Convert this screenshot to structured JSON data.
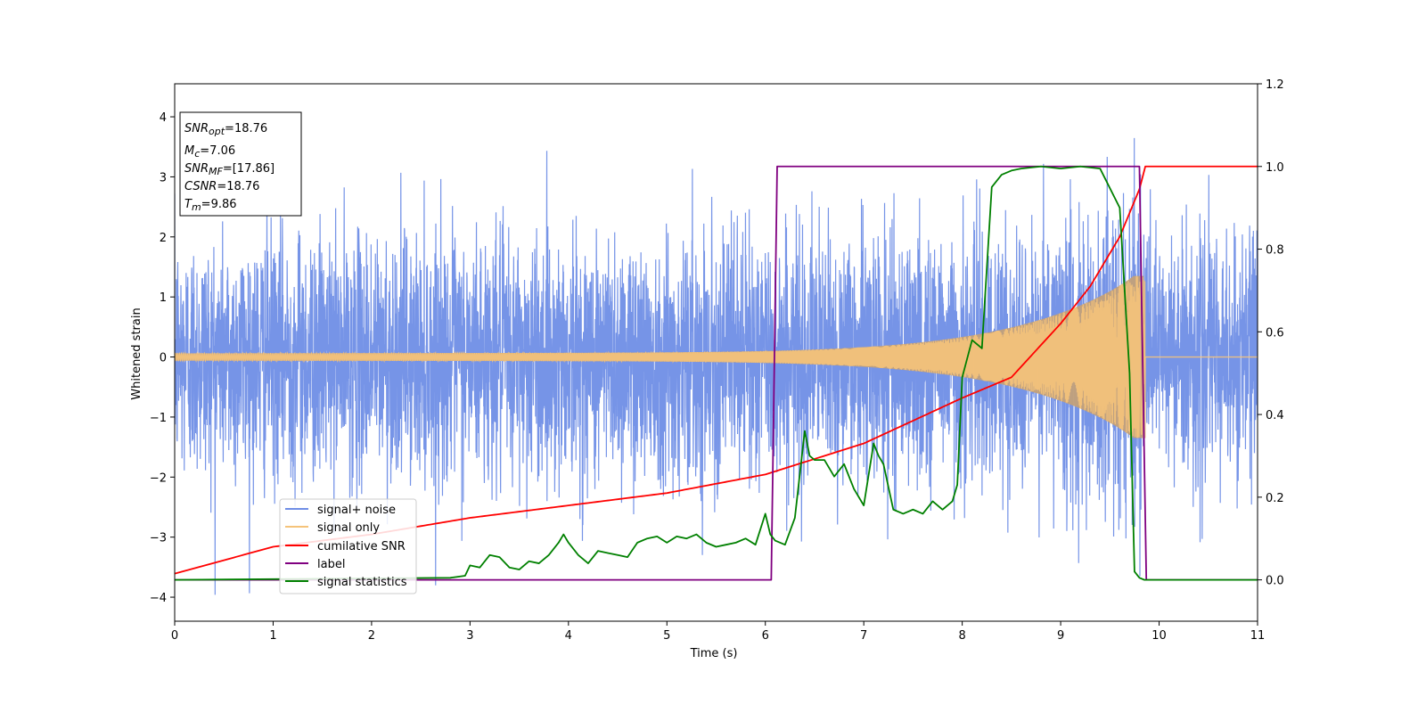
{
  "chart_data": {
    "type": "line",
    "xlabel": "Time (s)",
    "ylabel": "Whitened strain",
    "xlim": [
      0,
      11
    ],
    "ylim_left": [
      -4.4,
      4.55
    ],
    "ylim_right": [
      -0.1,
      1.2
    ],
    "x_ticks": [
      0,
      1,
      2,
      3,
      4,
      5,
      6,
      7,
      8,
      9,
      10,
      11
    ],
    "y_ticks_left": [
      -4,
      -3,
      -2,
      -1,
      0,
      1,
      2,
      3,
      4
    ],
    "y_ticks_right": [
      0.0,
      0.2,
      0.4,
      0.6,
      0.8,
      1.0,
      1.2
    ],
    "legend_position": "lower-left",
    "annotation": {
      "snr_opt": {
        "main": "SNR",
        "sub": "opt",
        "value": "=18.76"
      },
      "mc": {
        "main": "M",
        "sub": "c",
        "value": "=7.06"
      },
      "snr_mf": {
        "main": "SNR",
        "sub": "MF",
        "value": "=[17.86]"
      },
      "csnr": {
        "main": "CSNR",
        "sub": "",
        "value": "=18.76"
      },
      "tm": {
        "main": "T",
        "sub": "m",
        "value": "=9.86"
      }
    },
    "series": [
      {
        "name": "signal+ noise",
        "axis": "left",
        "color": "#6f8ee6",
        "noise_std": 1.0,
        "approx_range": [
          -3.9,
          4.2
        ]
      },
      {
        "name": "signal only",
        "axis": "left",
        "color": "#f5c37a",
        "chirp_start_amplitude": 0.06,
        "chirp_end_amplitude": 1.35,
        "merger_time": 9.86
      },
      {
        "name": "cumilative SNR",
        "axis": "right",
        "color": "#ff0000",
        "x": [
          0,
          1,
          2,
          3,
          4,
          5,
          6,
          7,
          8,
          8.5,
          9,
          9.3,
          9.6,
          9.8,
          9.86,
          11
        ],
        "values": [
          0.015,
          0.08,
          0.11,
          0.15,
          0.18,
          0.21,
          0.255,
          0.33,
          0.44,
          0.49,
          0.62,
          0.71,
          0.83,
          0.945,
          1.0,
          1.0
        ]
      },
      {
        "name": "label",
        "axis": "right",
        "color": "#800080",
        "x": [
          0,
          6.06,
          6.12,
          9.8,
          9.87,
          11
        ],
        "values": [
          0.0,
          0.0,
          1.0,
          1.0,
          0.0,
          0.0
        ]
      },
      {
        "name": "signal statistics",
        "axis": "right",
        "color": "#008000",
        "x": [
          0,
          2.8,
          2.95,
          3.0,
          3.1,
          3.2,
          3.3,
          3.4,
          3.5,
          3.6,
          3.7,
          3.8,
          3.9,
          3.95,
          4.0,
          4.1,
          4.2,
          4.3,
          4.4,
          4.5,
          4.6,
          4.7,
          4.8,
          4.9,
          5.0,
          5.1,
          5.2,
          5.3,
          5.4,
          5.5,
          5.6,
          5.7,
          5.8,
          5.9,
          6.0,
          6.05,
          6.1,
          6.2,
          6.3,
          6.4,
          6.45,
          6.5,
          6.6,
          6.7,
          6.8,
          6.9,
          7.0,
          7.1,
          7.15,
          7.2,
          7.3,
          7.4,
          7.5,
          7.6,
          7.7,
          7.8,
          7.9,
          7.95,
          8.0,
          8.1,
          8.2,
          8.3,
          8.4,
          8.5,
          8.6,
          8.8,
          9.0,
          9.2,
          9.4,
          9.6,
          9.7,
          9.75,
          9.8,
          9.85,
          9.9,
          11
        ],
        "values": [
          0.0,
          0.005,
          0.01,
          0.035,
          0.03,
          0.06,
          0.055,
          0.03,
          0.025,
          0.045,
          0.04,
          0.06,
          0.09,
          0.11,
          0.09,
          0.06,
          0.04,
          0.07,
          0.065,
          0.06,
          0.055,
          0.09,
          0.1,
          0.105,
          0.09,
          0.105,
          0.1,
          0.11,
          0.09,
          0.08,
          0.085,
          0.09,
          0.1,
          0.085,
          0.16,
          0.11,
          0.095,
          0.085,
          0.15,
          0.36,
          0.3,
          0.29,
          0.29,
          0.25,
          0.28,
          0.22,
          0.18,
          0.33,
          0.3,
          0.28,
          0.17,
          0.16,
          0.17,
          0.16,
          0.19,
          0.17,
          0.19,
          0.23,
          0.49,
          0.58,
          0.56,
          0.95,
          0.98,
          0.99,
          0.995,
          1.0,
          0.995,
          1.0,
          0.995,
          0.9,
          0.5,
          0.02,
          0.005,
          0.0,
          0.0,
          0.0
        ]
      }
    ]
  }
}
